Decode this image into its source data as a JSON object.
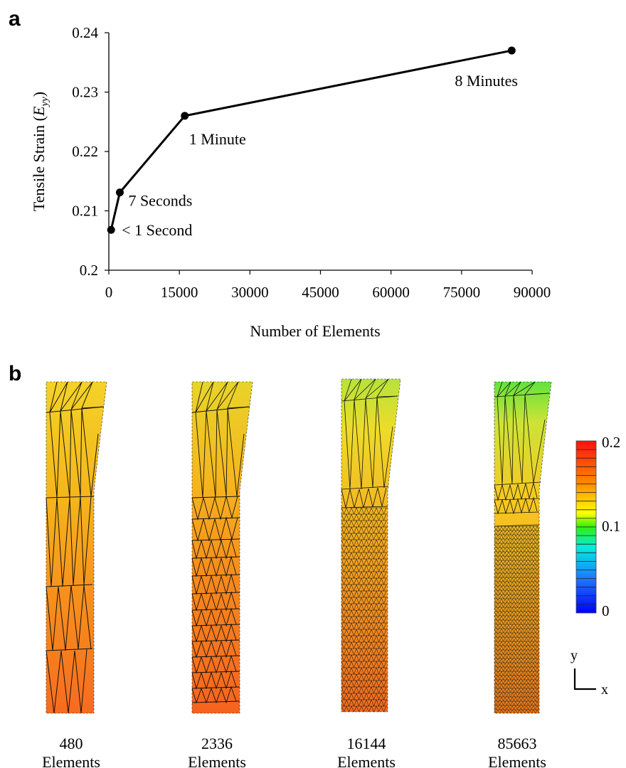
{
  "panel_a": {
    "label": "a"
  },
  "panel_b": {
    "label": "b"
  },
  "chart_data": {
    "type": "line",
    "xlabel": "Number of Elements",
    "ylabel_main": "Tensile Strain (",
    "ylabel_var": "E",
    "ylabel_sub": "yy",
    "ylabel_close": ")",
    "xlim": [
      0,
      90000
    ],
    "ylim": [
      0.2,
      0.24
    ],
    "xticks": [
      0,
      15000,
      30000,
      45000,
      60000,
      75000,
      90000
    ],
    "xtick_labels": [
      "0",
      "15000",
      "30000",
      "45000",
      "60000",
      "75000",
      "90000"
    ],
    "yticks": [
      0.2,
      0.21,
      0.22,
      0.23,
      0.24
    ],
    "ytick_labels": [
      "0.2",
      "0.21",
      "0.22",
      "0.23",
      "0.24"
    ],
    "grid": false,
    "x": [
      480,
      2336,
      16144,
      85663
    ],
    "y": [
      0.2068,
      0.2131,
      0.226,
      0.237
    ],
    "annotations": [
      "< 1 Second",
      "7 Seconds",
      "1 Minute",
      "8 Minutes"
    ]
  },
  "meshes": [
    {
      "count": "480",
      "unit": "Elements"
    },
    {
      "count": "2336",
      "unit": "Elements"
    },
    {
      "count": "16144",
      "unit": "Elements"
    },
    {
      "count": "85663",
      "unit": "Elements"
    }
  ],
  "colorbar": {
    "max_label": "0.2",
    "mid_label": "0.1",
    "min_label": "0",
    "max": 0.2,
    "min": 0
  },
  "axes_indicator": {
    "y": "y",
    "x": "x"
  }
}
